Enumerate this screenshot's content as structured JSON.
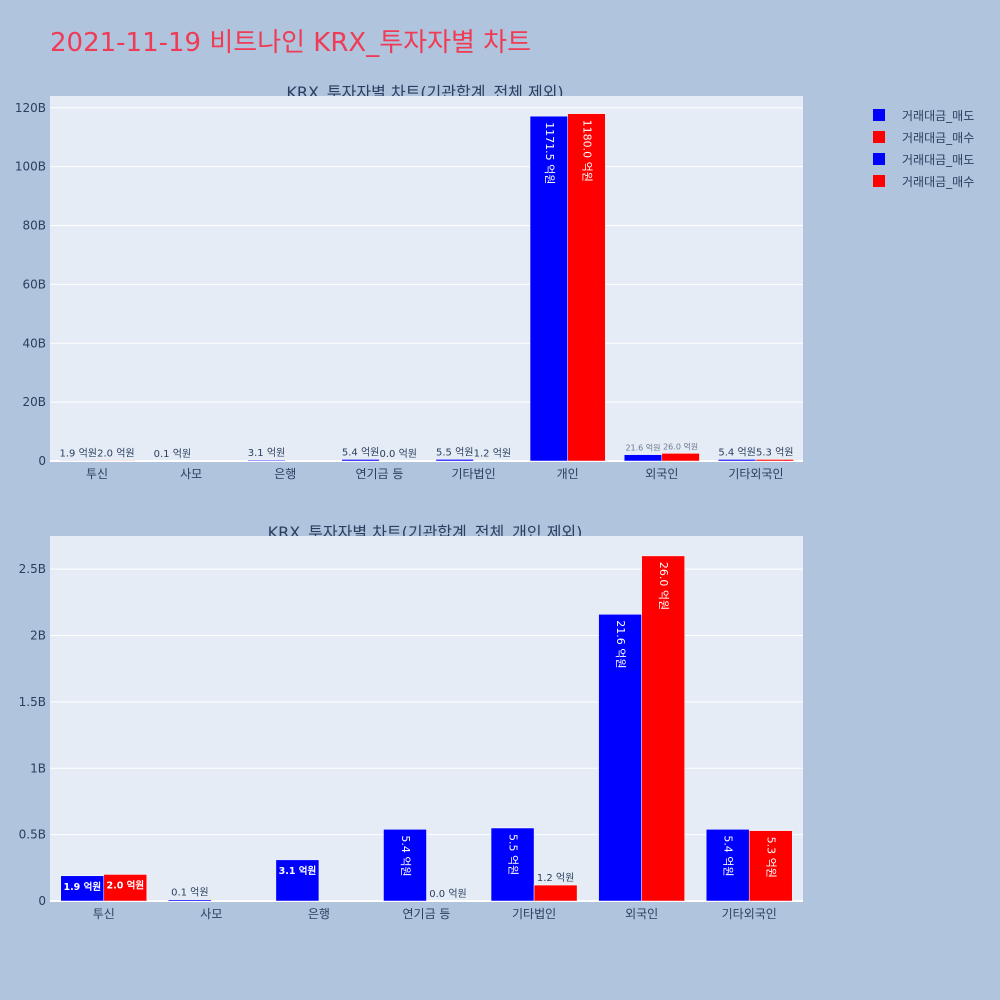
{
  "page_title": "2021-11-19 비트나인 KRX_투자자별 차트",
  "legend": [
    {
      "name": "거래대금_매도",
      "color": "#0000ff"
    },
    {
      "name": "거래대금_매수",
      "color": "#ff0000"
    },
    {
      "name": "거래대금_매도",
      "color": "#0000ff"
    },
    {
      "name": "거래대금_매수",
      "color": "#ff0000"
    }
  ],
  "chart_data": [
    {
      "type": "bar",
      "title": "KRX_투자자별 차트(기관합계_전체 제외)",
      "categories": [
        "투신",
        "사모",
        "은행",
        "연기금 등",
        "기타법인",
        "개인",
        "외국인",
        "기타외국인"
      ],
      "yticks": [
        "0",
        "20B",
        "40B",
        "60B",
        "80B",
        "100B",
        "120B"
      ],
      "ylim": [
        0,
        124000000000
      ],
      "series": [
        {
          "name": "거래대금_매도",
          "color": "#0000ff",
          "values": [
            190000000,
            10000000,
            310000000,
            540000000,
            550000000,
            117150000000,
            2160000000,
            540000000
          ],
          "labels": [
            "1.9 억원",
            "0.1 억원",
            "3.1 억원",
            "5.4 억원",
            "5.5 억원",
            "1171.5 억원",
            "21.6 억원",
            "5.4 억원"
          ]
        },
        {
          "name": "거래대금_매수",
          "color": "#ff0000",
          "values": [
            200000000,
            0,
            0,
            0,
            120000000,
            118000000000,
            2600000000,
            530000000
          ],
          "labels": [
            "2.0 억원",
            "",
            "",
            "0.0 억원",
            "1.2 억원",
            "1180.0 억원",
            "26.0 억원",
            "5.3 억원"
          ]
        }
      ]
    },
    {
      "type": "bar",
      "title": "KRX_투자자별 차트(기관합계_전체_개인 제외)",
      "categories": [
        "투신",
        "사모",
        "은행",
        "연기금 등",
        "기타법인",
        "외국인",
        "기타외국인"
      ],
      "yticks": [
        "0",
        "0.5B",
        "1B",
        "1.5B",
        "2B",
        "2.5B"
      ],
      "ylim": [
        0,
        2750000000
      ],
      "series": [
        {
          "name": "거래대금_매도",
          "color": "#0000ff",
          "values": [
            190000000,
            10000000,
            310000000,
            540000000,
            550000000,
            2160000000,
            540000000
          ],
          "labels": [
            "1.9 억원",
            "0.1 억원",
            "3.1 억원",
            "5.4 억원",
            "5.5 억원",
            "21.6 억원",
            "5.4 억원"
          ]
        },
        {
          "name": "거래대금_매수",
          "color": "#ff0000",
          "values": [
            200000000,
            0,
            0,
            0,
            120000000,
            2600000000,
            530000000
          ],
          "labels": [
            "2.0 억원",
            "",
            "",
            "0.0 억원",
            "1.2 억원",
            "26.0 억원",
            "5.3 억원"
          ]
        }
      ]
    }
  ]
}
